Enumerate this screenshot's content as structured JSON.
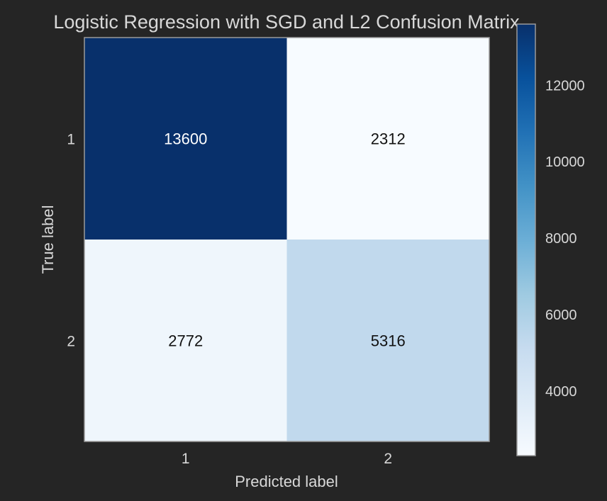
{
  "chart_data": {
    "type": "heatmap",
    "title": "Logistic Regression with SGD and L2 Confusion Matrix",
    "xlabel": "Predicted label",
    "ylabel": "True label",
    "x_categories": [
      "1",
      "2"
    ],
    "y_categories": [
      "1",
      "2"
    ],
    "matrix": [
      [
        13600,
        2312
      ],
      [
        2772,
        5316
      ]
    ],
    "colormap": "Blues",
    "colorbar": {
      "range": [
        2312,
        13600
      ],
      "ticks": [
        4000,
        6000,
        8000,
        10000,
        12000
      ]
    },
    "grid": false
  },
  "colors": {
    "background": "#252525",
    "text": "#d8d8d8",
    "axis_frame": "#9a9a9a",
    "cell_text_dark": "#111111",
    "cell_text_light": "#ffffff"
  }
}
